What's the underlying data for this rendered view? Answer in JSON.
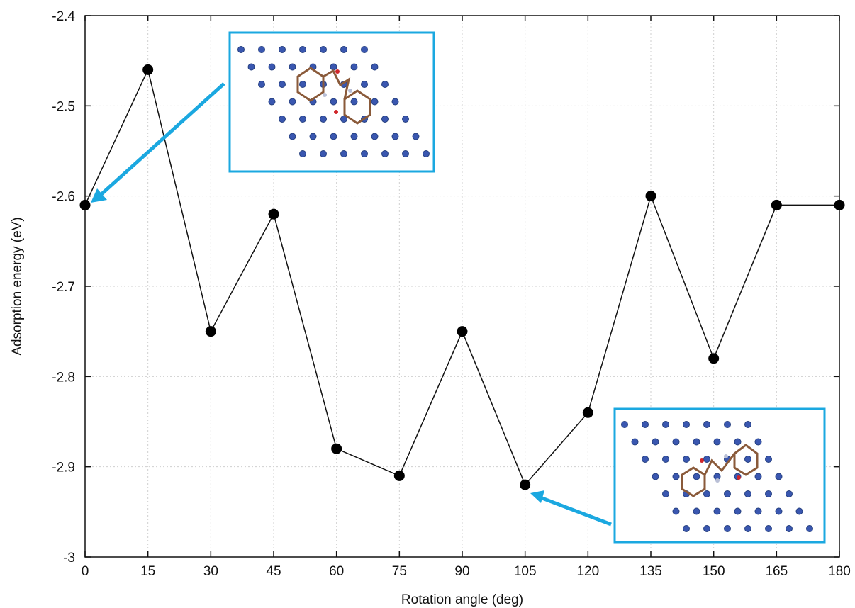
{
  "chart_data": {
    "type": "line",
    "xlabel": "Rotation angle (deg)",
    "ylabel": "Adsorption energy (eV)",
    "xlim": [
      0,
      180
    ],
    "ylim": [
      -3,
      -2.4
    ],
    "x_ticks": [
      "0",
      "15",
      "30",
      "45",
      "60",
      "75",
      "90",
      "105",
      "120",
      "135",
      "150",
      "165",
      "180"
    ],
    "y_ticks": [
      "-2.4",
      "-2.5",
      "-2.6",
      "-2.7",
      "-2.8",
      "-2.9",
      "-3"
    ],
    "grid": true,
    "x": [
      0,
      15,
      30,
      45,
      60,
      75,
      90,
      105,
      120,
      135,
      150,
      165,
      180
    ],
    "y": [
      -2.61,
      -2.46,
      -2.75,
      -2.62,
      -2.88,
      -2.91,
      -2.75,
      -2.92,
      -2.84,
      -2.6,
      -2.78,
      -2.61,
      -2.61
    ],
    "annotations": [
      {
        "kind": "inset-structure-image",
        "points_to_x": 0,
        "points_to_y": -2.61,
        "color": "#1ba8e0"
      },
      {
        "kind": "inset-structure-image",
        "points_to_x": 105,
        "points_to_y": -2.92,
        "color": "#1ba8e0"
      }
    ]
  }
}
